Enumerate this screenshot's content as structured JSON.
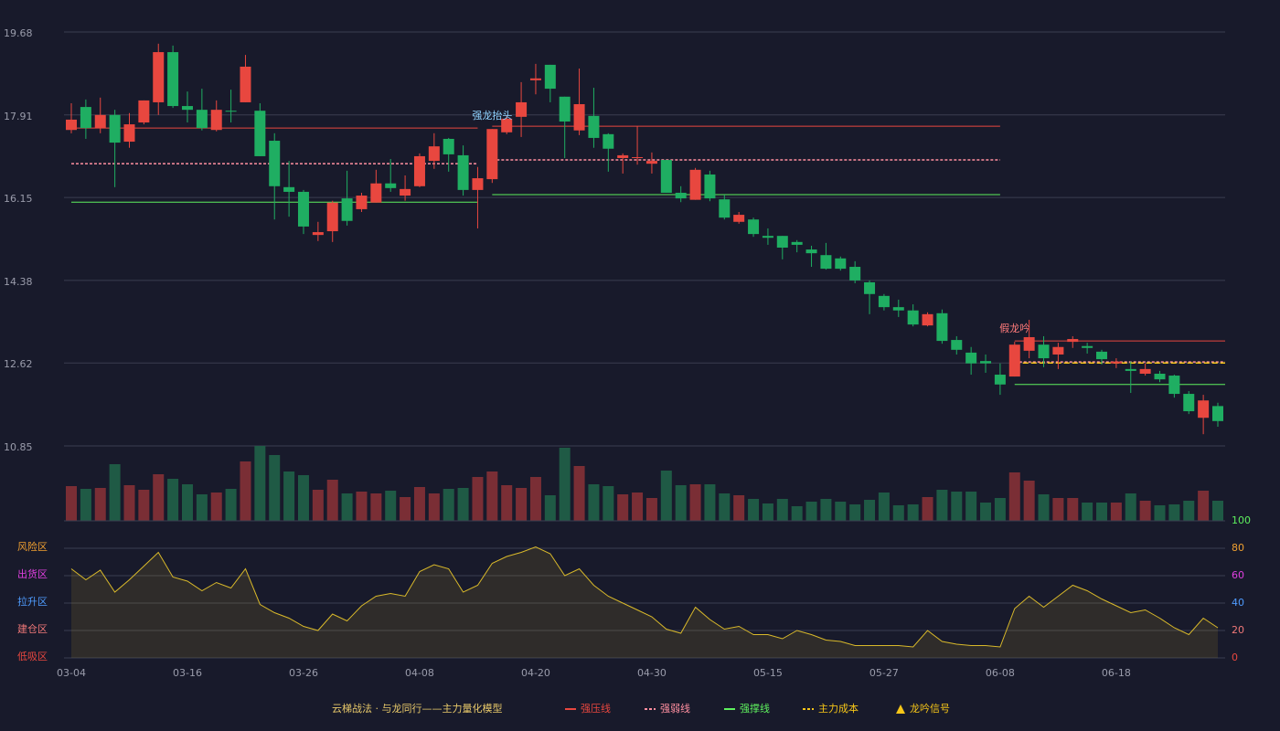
{
  "chart_data": [
    {
      "type": "candlestick",
      "categories": [
        "03-04",
        null,
        null,
        null,
        null,
        null,
        null,
        null,
        "03-16",
        null,
        null,
        null,
        null,
        null,
        null,
        null,
        "03-26",
        null,
        null,
        null,
        null,
        null,
        null,
        null,
        "04-08",
        null,
        null,
        null,
        null,
        null,
        null,
        null,
        "04-20",
        null,
        null,
        null,
        null,
        null,
        null,
        null,
        "04-30",
        null,
        null,
        null,
        null,
        null,
        null,
        null,
        "05-15",
        null,
        null,
        null,
        null,
        null,
        null,
        null,
        "05-27",
        null,
        null,
        null,
        null,
        null,
        null,
        null,
        "06-08",
        null,
        null,
        null,
        null,
        null,
        null,
        null,
        "06-18",
        null,
        null,
        null,
        null,
        null,
        null,
        null
      ],
      "open": [
        17.59,
        18.08,
        17.63,
        17.91,
        17.34,
        17.75,
        18.18,
        19.25,
        18.1,
        18.02,
        17.59,
        18.0,
        18.18,
        18.0,
        17.36,
        16.37,
        16.27,
        15.35,
        15.43,
        16.13,
        15.9,
        16.04,
        16.45,
        16.19,
        16.39,
        16.93,
        17.4,
        17.05,
        16.31,
        16.54,
        17.54,
        17.87,
        18.65,
        18.98,
        18.3,
        17.58,
        17.89,
        17.5,
        16.99,
        16.99,
        16.87,
        16.95,
        16.25,
        16.1,
        16.64,
        16.11,
        15.63,
        15.68,
        15.33,
        15.33,
        15.2,
        15.04,
        14.92,
        14.85,
        14.67,
        14.34,
        14.05,
        13.81,
        13.74,
        13.42,
        13.68,
        13.11,
        12.84,
        12.66,
        12.37,
        12.33,
        12.88,
        13.01,
        12.8,
        13.07,
        12.98,
        12.86,
        12.61,
        12.49,
        12.39,
        12.39,
        12.35,
        11.96,
        11.45,
        11.7
      ],
      "close": [
        17.81,
        17.63,
        17.91,
        17.32,
        17.71,
        18.22,
        19.25,
        18.1,
        18.02,
        17.63,
        18.02,
        17.98,
        18.94,
        17.03,
        16.39,
        16.27,
        15.53,
        15.41,
        16.04,
        15.65,
        16.19,
        16.45,
        16.35,
        16.33,
        17.03,
        17.24,
        17.07,
        16.31,
        16.56,
        17.61,
        17.83,
        18.18,
        18.69,
        18.47,
        17.77,
        18.14,
        17.42,
        17.19,
        17.05,
        17.01,
        16.93,
        16.25,
        16.13,
        16.74,
        16.13,
        15.72,
        15.78,
        15.37,
        15.29,
        15.08,
        15.14,
        14.96,
        14.63,
        14.63,
        14.38,
        14.09,
        13.81,
        13.74,
        13.44,
        13.66,
        13.09,
        12.9,
        12.61,
        12.61,
        12.16,
        13.01,
        13.17,
        12.72,
        12.96,
        13.13,
        12.94,
        12.7,
        12.65,
        12.45,
        12.49,
        12.27,
        11.96,
        11.59,
        11.82,
        11.38
      ],
      "low": [
        17.52,
        17.4,
        17.52,
        16.37,
        17.21,
        17.71,
        17.91,
        18.06,
        17.75,
        17.58,
        17.56,
        17.75,
        18.18,
        17.03,
        15.68,
        15.74,
        15.37,
        15.22,
        15.2,
        15.55,
        15.84,
        16.04,
        16.27,
        16.08,
        16.37,
        16.76,
        16.7,
        16.19,
        15.49,
        16.46,
        17.5,
        17.44,
        18.35,
        18.18,
        16.99,
        17.48,
        17.21,
        16.7,
        16.66,
        16.85,
        16.66,
        16.25,
        16.05,
        16.1,
        16.07,
        15.68,
        15.59,
        15.31,
        15.14,
        14.83,
        14.98,
        14.67,
        14.61,
        14.59,
        14.32,
        13.66,
        13.74,
        13.6,
        13.4,
        13.4,
        13.03,
        12.8,
        12.37,
        12.41,
        11.94,
        12.33,
        12.72,
        12.53,
        12.49,
        12.94,
        12.82,
        12.59,
        12.51,
        11.98,
        12.35,
        12.21,
        11.88,
        11.53,
        11.1,
        11.26
      ],
      "high": [
        18.16,
        18.24,
        18.28,
        18.02,
        17.95,
        18.22,
        19.43,
        19.39,
        18.41,
        18.47,
        18.22,
        18.45,
        19.19,
        18.16,
        17.52,
        16.93,
        16.31,
        15.63,
        16.08,
        16.72,
        16.25,
        16.74,
        16.97,
        16.62,
        17.09,
        17.52,
        17.42,
        17.26,
        16.8,
        17.61,
        17.89,
        18.61,
        19.0,
        18.98,
        18.3,
        18.9,
        18.49,
        17.52,
        17.09,
        17.67,
        17.11,
        16.95,
        16.39,
        16.78,
        16.72,
        16.21,
        15.84,
        15.72,
        15.49,
        15.33,
        15.24,
        15.12,
        15.18,
        14.89,
        14.79,
        14.38,
        14.09,
        13.97,
        13.87,
        13.7,
        13.76,
        13.19,
        12.96,
        12.8,
        12.61,
        13.07,
        13.54,
        13.19,
        13.05,
        13.19,
        13.05,
        12.9,
        12.72,
        12.65,
        12.61,
        12.45,
        12.37,
        12.02,
        11.94,
        11.77
      ],
      "up_color": "#e8473f",
      "down_color": "#1fae62",
      "ylim": [
        10.85,
        19.68
      ],
      "yticks": [
        10.85,
        12.62,
        14.38,
        16.15,
        17.91,
        19.68
      ],
      "grid": true,
      "series": [
        {
          "name": "强压线",
          "color": "#e8473f",
          "dash": false,
          "segments": [
            {
              "start": 0,
              "end": 28,
              "value": 17.63
            },
            {
              "start": 29,
              "end": 64,
              "value": 17.67
            },
            {
              "start": 65,
              "end": 79,
              "value": 13.09
            }
          ]
        },
        {
          "name": "强弱线",
          "color": "#ff8fa0",
          "dash": true,
          "segments": [
            {
              "start": 0,
              "end": 28,
              "value": 16.87
            },
            {
              "start": 29,
              "end": 64,
              "value": 16.95
            },
            {
              "start": 65,
              "end": 79,
              "value": 12.64
            }
          ]
        },
        {
          "name": "强撑线",
          "color": "#5ef05e",
          "dash": false,
          "segments": [
            {
              "start": 0,
              "end": 28,
              "value": 16.05
            },
            {
              "start": 29,
              "end": 64,
              "value": 16.21
            },
            {
              "start": 65,
              "end": 79,
              "value": 12.16
            }
          ]
        },
        {
          "name": "主力成本",
          "color": "#f5c518",
          "dash": true,
          "segments": [
            {
              "start": 65,
              "end": 79,
              "value": 12.62
            }
          ]
        }
      ],
      "signal_name": "龙吟信号",
      "signal_color": "#f5c518",
      "signals": [
        {
          "label": "强龙抬头",
          "index": 29,
          "color": "#8fd3ff"
        },
        {
          "label": "假龙吟",
          "index": 65,
          "color": "#ff7b7b"
        }
      ],
      "title": "云梯战法 · 与龙同行——主力量化模型"
    },
    {
      "type": "volume",
      "up_color": "#7a2e35",
      "down_color": "#1f5a45",
      "values": [
        38,
        35,
        36,
        62,
        39,
        34,
        51,
        46,
        40,
        29,
        31,
        35,
        65,
        82,
        72,
        54,
        50,
        34,
        45,
        30,
        32,
        30,
        33,
        26,
        37,
        30,
        35,
        36,
        48,
        54,
        39,
        36,
        48,
        28,
        80,
        60,
        40,
        38,
        29,
        31,
        25,
        55,
        39,
        40,
        40,
        30,
        28,
        24,
        19,
        24,
        16,
        21,
        24,
        21,
        18,
        23,
        31,
        17,
        18,
        26,
        34,
        32,
        32,
        20,
        25,
        53,
        44,
        29,
        25,
        25,
        20,
        20,
        20,
        30,
        22,
        17,
        18,
        22,
        33,
        22
      ]
    },
    {
      "type": "line",
      "color": "#d9b92a",
      "values": [
        65,
        57,
        64,
        48,
        57,
        67,
        77,
        59,
        56,
        49,
        55,
        51,
        65,
        39,
        33,
        29,
        23,
        20,
        32,
        27,
        38,
        45,
        47,
        45,
        63,
        68,
        65,
        48,
        53,
        69,
        74,
        77,
        81,
        76,
        60,
        65,
        53,
        45,
        40,
        35,
        30,
        21,
        18,
        37,
        28,
        21,
        23,
        17,
        17,
        14,
        20,
        17,
        13,
        12,
        9,
        9,
        9,
        9,
        8,
        20,
        12,
        10,
        9,
        9,
        8,
        36,
        45,
        37,
        45,
        53,
        49,
        43,
        38,
        33,
        35,
        29,
        22,
        17,
        29,
        22
      ],
      "ylim": [
        0,
        100
      ],
      "yticks": [
        0,
        20,
        40,
        60,
        80,
        100
      ],
      "ytick_colors": [
        "#e8473f",
        "#f07878",
        "#4f9cff",
        "#e040e0",
        "#f0a030",
        "#5ef05e"
      ],
      "zones": [
        "低吸区",
        "建仓区",
        "拉升区",
        "出货区",
        "风险区"
      ],
      "zone_colors": [
        "#e8473f",
        "#f07878",
        "#4f9cff",
        "#e040e0",
        "#f0a030"
      ]
    }
  ]
}
